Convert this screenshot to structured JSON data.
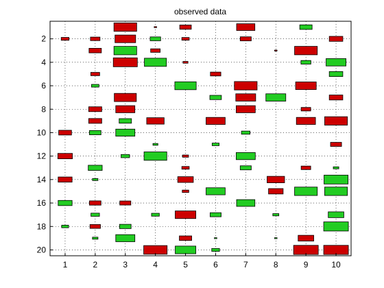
{
  "chart_data": {
    "type": "heatmap",
    "title": "observed data",
    "xlabel": "",
    "ylabel": "",
    "x_ticks": [
      1,
      2,
      3,
      4,
      5,
      6,
      7,
      8,
      9,
      10
    ],
    "y_ticks": [
      2,
      4,
      6,
      8,
      10,
      12,
      14,
      16,
      18,
      20
    ],
    "xlim": [
      0.5,
      10.5
    ],
    "ylim": [
      20.5,
      0.5
    ],
    "y_reversed": true,
    "grid": "dotted",
    "positive_color": "#22cc22",
    "negative_color": "#cc0000",
    "note_encoding": "rectangle area proportional to magnitude; green positive, red negative",
    "points": [
      {
        "x": 1,
        "y": 2,
        "v": -0.1
      },
      {
        "x": 1,
        "y": 10,
        "v": -0.27
      },
      {
        "x": 1,
        "y": 12,
        "v": -0.35
      },
      {
        "x": 1,
        "y": 14,
        "v": -0.32
      },
      {
        "x": 1,
        "y": 16,
        "v": 0.32
      },
      {
        "x": 1,
        "y": 18,
        "v": 0.08
      },
      {
        "x": 2,
        "y": 2,
        "v": -0.15
      },
      {
        "x": 2,
        "y": 3,
        "v": -0.25
      },
      {
        "x": 2,
        "y": 5,
        "v": -0.13
      },
      {
        "x": 2,
        "y": 6,
        "v": 0.09
      },
      {
        "x": 2,
        "y": 8,
        "v": -0.28
      },
      {
        "x": 2,
        "y": 9,
        "v": -0.28
      },
      {
        "x": 2,
        "y": 10,
        "v": 0.22
      },
      {
        "x": 2,
        "y": 13,
        "v": 0.32
      },
      {
        "x": 2,
        "y": 14,
        "v": 0.05
      },
      {
        "x": 2,
        "y": 16,
        "v": -0.22
      },
      {
        "x": 2,
        "y": 17,
        "v": 0.12
      },
      {
        "x": 2,
        "y": 18,
        "v": -0.18
      },
      {
        "x": 2,
        "y": 19,
        "v": 0.05
      },
      {
        "x": 3,
        "y": 1,
        "v": -0.85
      },
      {
        "x": 3,
        "y": 2,
        "v": -0.7
      },
      {
        "x": 3,
        "y": 3,
        "v": 0.85
      },
      {
        "x": 3,
        "y": 4,
        "v": -0.95
      },
      {
        "x": 3,
        "y": 7,
        "v": -0.8
      },
      {
        "x": 3,
        "y": 8,
        "v": -0.6
      },
      {
        "x": 3,
        "y": 9,
        "v": 0.25
      },
      {
        "x": 3,
        "y": 10,
        "v": 0.6
      },
      {
        "x": 3,
        "y": 12,
        "v": 0.12
      },
      {
        "x": 3,
        "y": 16,
        "v": -0.2
      },
      {
        "x": 3,
        "y": 18,
        "v": 0.22
      },
      {
        "x": 3,
        "y": 19,
        "v": 0.6
      },
      {
        "x": 4,
        "y": 1,
        "v": -0.01
      },
      {
        "x": 4,
        "y": 2,
        "v": 0.18
      },
      {
        "x": 4,
        "y": 3,
        "v": -0.15
      },
      {
        "x": 4,
        "y": 4,
        "v": 0.8
      },
      {
        "x": 4,
        "y": 9,
        "v": -0.5
      },
      {
        "x": 4,
        "y": 11,
        "v": 0.04
      },
      {
        "x": 4,
        "y": 12,
        "v": 0.85
      },
      {
        "x": 4,
        "y": 17,
        "v": 0.1
      },
      {
        "x": 4,
        "y": 20,
        "v": -0.9
      },
      {
        "x": 5,
        "y": 1,
        "v": -0.22
      },
      {
        "x": 5,
        "y": 2,
        "v": -0.09
      },
      {
        "x": 5,
        "y": 4,
        "v": -0.04
      },
      {
        "x": 5,
        "y": 6,
        "v": 0.75
      },
      {
        "x": 5,
        "y": 12,
        "v": -0.06
      },
      {
        "x": 5,
        "y": 13,
        "v": -0.09
      },
      {
        "x": 5,
        "y": 14,
        "v": -0.4
      },
      {
        "x": 5,
        "y": 15,
        "v": -0.07
      },
      {
        "x": 5,
        "y": 17,
        "v": -0.7
      },
      {
        "x": 5,
        "y": 19,
        "v": -0.25
      },
      {
        "x": 5,
        "y": 20,
        "v": 0.7
      },
      {
        "x": 6,
        "y": 5,
        "v": -0.18
      },
      {
        "x": 6,
        "y": 7,
        "v": 0.22
      },
      {
        "x": 6,
        "y": 9,
        "v": -0.6
      },
      {
        "x": 6,
        "y": 11,
        "v": 0.08
      },
      {
        "x": 6,
        "y": 15,
        "v": 0.6
      },
      {
        "x": 6,
        "y": 17,
        "v": 0.2
      },
      {
        "x": 6,
        "y": 19,
        "v": 0.01
      },
      {
        "x": 6,
        "y": 20,
        "v": 0.1
      },
      {
        "x": 7,
        "y": 1,
        "v": -0.55
      },
      {
        "x": 7,
        "y": 2,
        "v": -0.2
      },
      {
        "x": 7,
        "y": 6,
        "v": -0.85
      },
      {
        "x": 7,
        "y": 7,
        "v": -0.65
      },
      {
        "x": 7,
        "y": 8,
        "v": -0.6
      },
      {
        "x": 7,
        "y": 10,
        "v": 0.12
      },
      {
        "x": 7,
        "y": 12,
        "v": 0.6
      },
      {
        "x": 7,
        "y": 13,
        "v": 0.2
      },
      {
        "x": 7,
        "y": 16,
        "v": 0.55
      },
      {
        "x": 8,
        "y": 3,
        "v": -0.01
      },
      {
        "x": 8,
        "y": 7,
        "v": 0.65
      },
      {
        "x": 8,
        "y": 14,
        "v": -0.5
      },
      {
        "x": 8,
        "y": 15,
        "v": -0.35
      },
      {
        "x": 8,
        "y": 17,
        "v": 0.06
      },
      {
        "x": 8,
        "y": 19,
        "v": 0.01
      },
      {
        "x": 9,
        "y": 1,
        "v": 0.25
      },
      {
        "x": 9,
        "y": 3,
        "v": -0.85
      },
      {
        "x": 9,
        "y": 4,
        "v": 0.16
      },
      {
        "x": 9,
        "y": 6,
        "v": -0.7
      },
      {
        "x": 9,
        "y": 8,
        "v": -0.15
      },
      {
        "x": 9,
        "y": 9,
        "v": -0.6
      },
      {
        "x": 9,
        "y": 13,
        "v": -0.15
      },
      {
        "x": 9,
        "y": 15,
        "v": 0.85
      },
      {
        "x": 9,
        "y": 19,
        "v": -0.4
      },
      {
        "x": 9,
        "y": 20,
        "v": -1.0
      },
      {
        "x": 10,
        "y": 2,
        "v": -0.3
      },
      {
        "x": 10,
        "y": 4,
        "v": 0.65
      },
      {
        "x": 10,
        "y": 5,
        "v": 0.3
      },
      {
        "x": 10,
        "y": 7,
        "v": -0.3
      },
      {
        "x": 10,
        "y": 9,
        "v": -0.85
      },
      {
        "x": 10,
        "y": 11,
        "v": -0.2
      },
      {
        "x": 10,
        "y": 13,
        "v": 0.05
      },
      {
        "x": 10,
        "y": 14,
        "v": 0.95
      },
      {
        "x": 10,
        "y": 15,
        "v": 0.85
      },
      {
        "x": 10,
        "y": 17,
        "v": 0.4
      },
      {
        "x": 10,
        "y": 18,
        "v": 1.0
      },
      {
        "x": 10,
        "y": 20,
        "v": -1.0
      }
    ]
  }
}
